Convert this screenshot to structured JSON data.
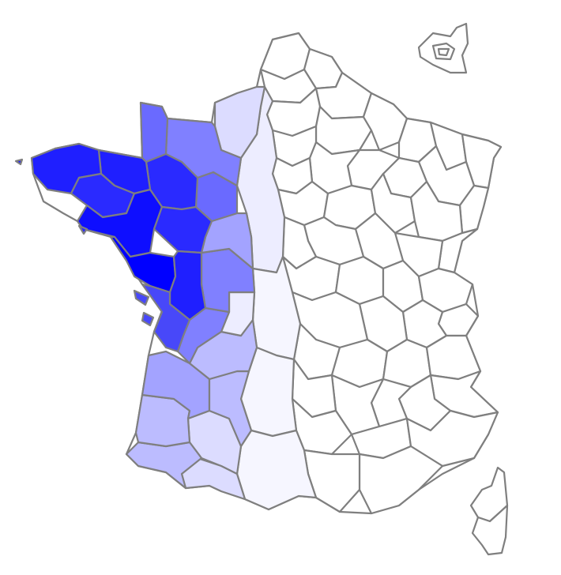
{
  "map": {
    "type": "choropleth",
    "country": "France",
    "unit": "departements",
    "palette": {
      "lowest": "#ffffff",
      "highest": "#0000ff",
      "border": "#7f7f7f",
      "background": "#ffffff"
    },
    "levels": [
      {
        "level": 1.0,
        "color": "#0000ff"
      },
      {
        "level": 0.88,
        "color": "#1f1fff"
      },
      {
        "level": 0.82,
        "color": "#2a2aff"
      },
      {
        "level": 0.72,
        "color": "#4848f9"
      },
      {
        "level": 0.6,
        "color": "#6a6aff"
      },
      {
        "level": 0.5,
        "color": "#8080ff"
      },
      {
        "level": 0.38,
        "color": "#a3a3ff"
      },
      {
        "level": 0.26,
        "color": "#bcbcff"
      },
      {
        "level": 0.15,
        "color": "#dcdcff"
      },
      {
        "level": 0.07,
        "color": "#ededff"
      },
      {
        "level": 0.0,
        "color": "#ffffff"
      }
    ],
    "insets": [
      "corsica",
      "paris-area"
    ]
  }
}
